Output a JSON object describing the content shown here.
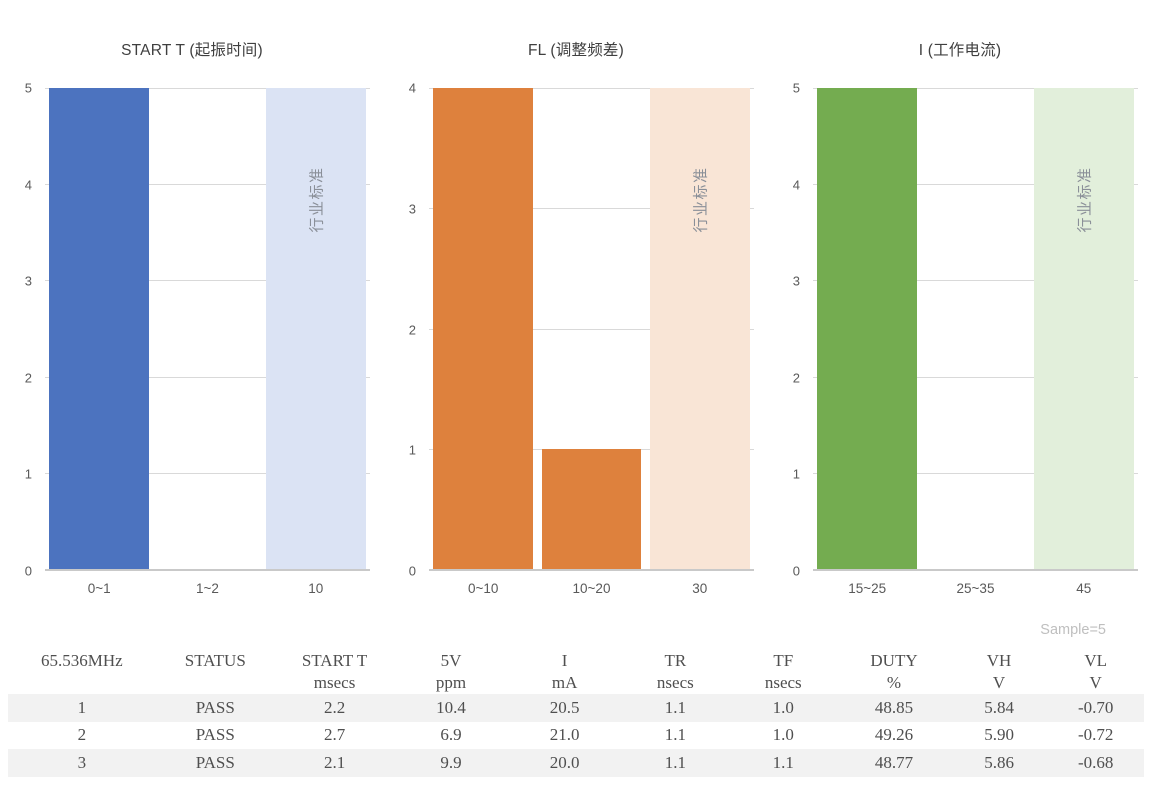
{
  "page": {
    "background": "#ffffff"
  },
  "chart_data": [
    {
      "type": "bar",
      "title": "START T (起振时间)",
      "categories": [
        "0~1",
        "1~2",
        "10"
      ],
      "values": [
        5,
        0,
        5
      ],
      "ylim": [
        0,
        5
      ],
      "ytick_step": 1,
      "grid": true,
      "legend": "none",
      "bar_color": "#4c73bf",
      "standard_bar_index": 2,
      "standard_bar_color": "#dbe3f4",
      "standard_bar_label": "行业标准"
    },
    {
      "type": "bar",
      "title": "FL (调整频差)",
      "categories": [
        "0~10",
        "10~20",
        "30"
      ],
      "values": [
        4,
        1,
        4
      ],
      "ylim": [
        0,
        4
      ],
      "ytick_step": 1,
      "grid": true,
      "legend": "none",
      "bar_color": "#de813d",
      "standard_bar_index": 2,
      "standard_bar_color": "#f9e5d6",
      "standard_bar_label": "行业标准"
    },
    {
      "type": "bar",
      "title": "I (工作电流)",
      "categories": [
        "15~25",
        "25~35",
        "45"
      ],
      "values": [
        5,
        0,
        5
      ],
      "ylim": [
        0,
        5
      ],
      "ytick_step": 1,
      "grid": true,
      "legend": "none",
      "bar_color": "#74ac50",
      "standard_bar_index": 2,
      "standard_bar_color": "#e2efdb",
      "standard_bar_label": "行业标准"
    }
  ],
  "table": {
    "sample_label": "Sample=5",
    "columns": [
      {
        "label": "65.536MHz",
        "unit": ""
      },
      {
        "label": "STATUS",
        "unit": ""
      },
      {
        "label": "START T",
        "unit": "msecs"
      },
      {
        "label": "5V",
        "unit": "ppm"
      },
      {
        "label": "I",
        "unit": "mA"
      },
      {
        "label": "TR",
        "unit": "nsecs"
      },
      {
        "label": "TF",
        "unit": "nsecs"
      },
      {
        "label": "DUTY",
        "unit": "%"
      },
      {
        "label": "VH",
        "unit": "V"
      },
      {
        "label": "VL",
        "unit": "V"
      }
    ],
    "rows": [
      [
        "1",
        "PASS",
        "2.2",
        "10.4",
        "20.5",
        "1.1",
        "1.0",
        "48.85",
        "5.84",
        "-0.70"
      ],
      [
        "2",
        "PASS",
        "2.7",
        "6.9",
        "21.0",
        "1.1",
        "1.0",
        "49.26",
        "5.90",
        "-0.72"
      ],
      [
        "3",
        "PASS",
        "2.1",
        "9.9",
        "20.0",
        "1.1",
        "1.1",
        "48.77",
        "5.86",
        "-0.68"
      ]
    ],
    "banded_row_color": "#f2f2f2"
  },
  "colors": {
    "gridline": "#d9d9d9",
    "axis_text": "#595959",
    "title_text": "#3f3f3f",
    "standard_label_text": "#8a8f98",
    "sample_label_text": "#bfbfbf",
    "table_text": "#4f4f4f"
  }
}
